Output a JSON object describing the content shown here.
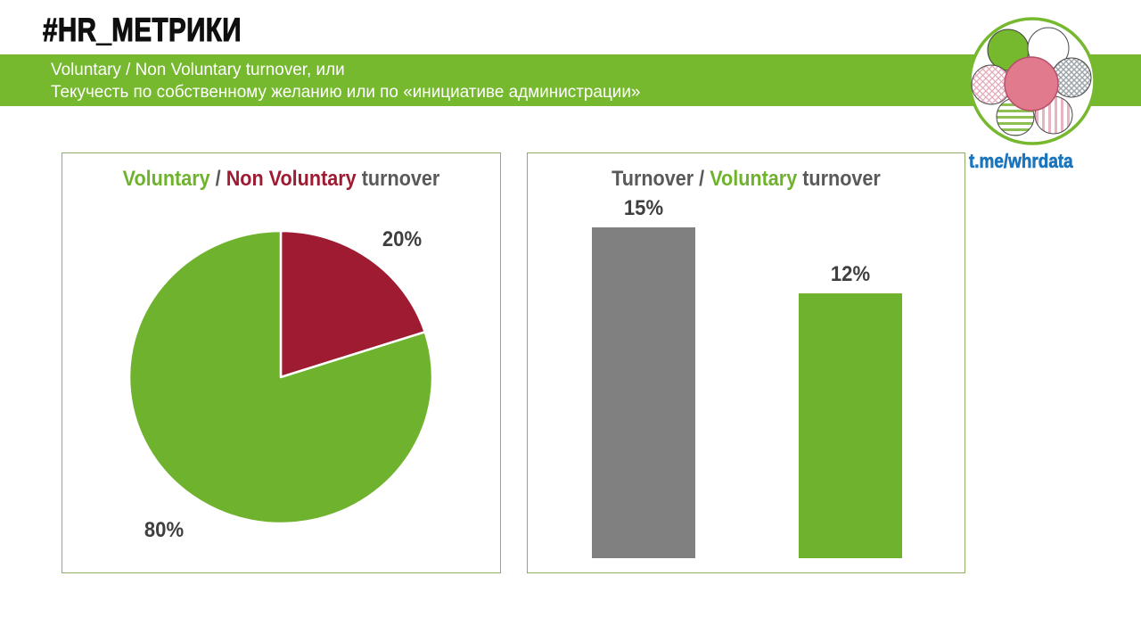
{
  "header": {
    "title": "#HR_МЕТРИКИ"
  },
  "banner": {
    "line1": "Voluntary / Non Voluntary turnover, или",
    "line2": "Текучесть по собственному желанию или по «инициативе администрации»"
  },
  "logo": {
    "link_text": "t.me/whrdata"
  },
  "left_panel": {
    "title": {
      "seg_voluntary": "Voluntary",
      "seg_separator": " / ",
      "seg_non_voluntary": "Non Voluntary",
      "seg_turnover": " turnover"
    }
  },
  "right_panel": {
    "title": {
      "seg_turnover": "Turnover / ",
      "seg_voluntary": "Voluntary",
      "seg_turnover2": " turnover"
    }
  },
  "chart_data": [
    {
      "type": "pie",
      "title": "Voluntary / Non Voluntary turnover",
      "direction": "clockwise-from-top",
      "start_angle_deg": 0,
      "slices": [
        {
          "name": "Non Voluntary turnover",
          "value": 20,
          "label": "20%",
          "color": "#9E1B32"
        },
        {
          "name": "Voluntary turnover",
          "value": 80,
          "label": "80%",
          "color": "#6FB22E"
        }
      ],
      "legend": "none"
    },
    {
      "type": "bar",
      "title": "Turnover / Voluntary turnover",
      "categories": [
        "Turnover",
        "Voluntary turnover"
      ],
      "values": [
        15,
        12
      ],
      "labels": [
        "15%",
        "12%"
      ],
      "colors": [
        "#808080",
        "#6FB22E"
      ],
      "ylim": [
        0,
        16
      ],
      "unit": "%",
      "legend": "none"
    }
  ],
  "colors": {
    "banner_green": "#76B82E",
    "chart_green": "#6FB22E",
    "dark_red": "#9E1B32",
    "bar_gray": "#808080",
    "title_gray": "#595959",
    "label_dark": "#3F3F3F",
    "panel_border": "#8FAC66",
    "link_blue": "#1B74BC",
    "logo_pink": "#E17A8D"
  }
}
